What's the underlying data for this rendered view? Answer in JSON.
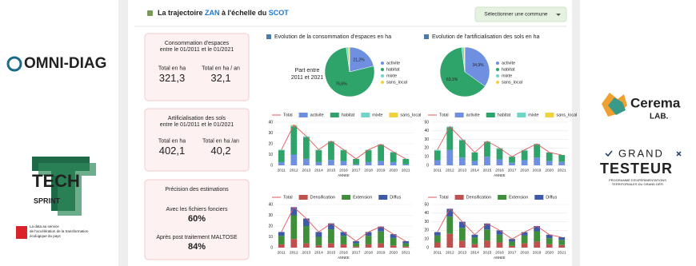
{
  "logos": {
    "omni": "OMNI-DIAG",
    "tech": "TECH",
    "sprint": "SPRINT",
    "tech_caption": [
      "La data au service",
      "de l'accélération de la transformation",
      "écologique du pays"
    ],
    "cerema": "Cerema",
    "cerema_lab": "LAB.",
    "grand": "GRAND",
    "testeur": "TESTEUR",
    "testeur_caption": [
      "PROGRAMME D'EXPÉRIMENTATIONS",
      "TERRITORIALES DU GRAND DÉFI"
    ]
  },
  "header": {
    "title": [
      "La trajectoire ",
      "ZAN",
      " à l'échelle du ",
      "SCOT"
    ],
    "dropdown": "Sélectionner une commune"
  },
  "kpis": [
    {
      "title": [
        "Consommation d'espaces",
        "entre le 01/2011 et le 01/2021"
      ],
      "items": [
        {
          "label": "Total en ha",
          "value": "321,3"
        },
        {
          "label": "Total en ha / an",
          "value": "32,1"
        }
      ]
    },
    {
      "title": [
        "Artificialisation des sols",
        "entre le 01/2011 et le 01/2021"
      ],
      "items": [
        {
          "label": "Total en ha",
          "value": "402,1"
        },
        {
          "label": "Total en ha /an",
          "value": "40,2"
        }
      ]
    },
    {
      "title": [
        "Précision des estimations"
      ],
      "items": [
        {
          "label": "Avec les fichiers fonciers",
          "value": "60%",
          "color": "#f0a020"
        },
        {
          "label": "Après post traitement MALTOSE",
          "value": "84%",
          "color": "#3f9a3a"
        }
      ]
    }
  ],
  "charts": [
    {
      "type": "pie",
      "title": "Evolution de la consommation d'espaces en ha",
      "center_label": [
        "Part entre",
        "2011 et 2021"
      ],
      "categories": [
        "activite",
        "habitat",
        "mixte",
        "sans_local"
      ],
      "colors": [
        "#6f8fe0",
        "#2ea36a",
        "#6fd5c9",
        "#f0d23c"
      ],
      "values": [
        21.2,
        76.6,
        1.5,
        0.7
      ],
      "value_labels": [
        "21,2%",
        "76,6%",
        null,
        null
      ]
    },
    {
      "type": "pie",
      "title": "Evolution de l'artificialisation des sols en ha",
      "categories": [
        "activite",
        "habitat",
        "mixte",
        "sans_local"
      ],
      "colors": [
        "#6f8fe0",
        "#2ea36a",
        "#6fd5c9",
        "#f0d23c"
      ],
      "values": [
        34.9,
        63.1,
        1.5,
        0.5
      ],
      "value_labels": [
        "34,9%",
        "63,1%",
        null,
        null
      ]
    },
    {
      "type": "bar",
      "stacked": true,
      "x_label": "ANNEE",
      "categories": [
        "2011",
        "2012",
        "2013",
        "2014",
        "2015",
        "2016",
        "2017",
        "2018",
        "2019",
        "2020",
        "2021"
      ],
      "ylim": [
        0,
        40
      ],
      "yticks": [
        0,
        10,
        20,
        30,
        40
      ],
      "series": [
        {
          "name": "Total",
          "mark": "line",
          "color": "#e05a5a",
          "values": [
            14.5,
            37.5,
            27,
            14.5,
            22.5,
            14.5,
            6,
            14.5,
            19.5,
            12.5,
            6
          ]
        },
        {
          "name": "activite",
          "color": "#6f8fe0",
          "values": [
            3,
            10,
            6,
            3,
            5,
            4,
            1,
            3,
            4,
            3,
            1
          ]
        },
        {
          "name": "habitat",
          "color": "#2ea36a",
          "values": [
            11,
            26,
            20,
            11,
            17,
            10,
            5,
            11,
            15,
            9,
            5
          ]
        },
        {
          "name": "mixte",
          "color": "#6fd5c9",
          "values": [
            0.5,
            1,
            1,
            0.5,
            0.5,
            0.5,
            0,
            0.5,
            0.5,
            0.5,
            0
          ]
        },
        {
          "name": "sans_local",
          "color": "#f0d23c",
          "values": [
            0,
            0.5,
            0,
            0,
            0,
            0,
            0,
            0,
            0,
            0,
            0
          ]
        }
      ]
    },
    {
      "type": "bar",
      "stacked": true,
      "x_label": "ANNEE",
      "categories": [
        "2011",
        "2012",
        "2013",
        "2014",
        "2015",
        "2016",
        "2017",
        "2018",
        "2019",
        "2020",
        "2021"
      ],
      "ylim": [
        0,
        50
      ],
      "yticks": [
        0,
        10,
        20,
        30,
        40,
        50
      ],
      "series": [
        {
          "name": "Total",
          "mark": "line",
          "color": "#e05a5a",
          "values": [
            18,
            45,
            30,
            15,
            28,
            20,
            10,
            18,
            25,
            15,
            12
          ]
        },
        {
          "name": "activite",
          "color": "#6f8fe0",
          "values": [
            6,
            18,
            9,
            5,
            10,
            7,
            3,
            6,
            9,
            5,
            4
          ]
        },
        {
          "name": "habitat",
          "color": "#2ea36a",
          "values": [
            11,
            26,
            20,
            10,
            17,
            12,
            7,
            11,
            15,
            10,
            8
          ]
        },
        {
          "name": "mixte",
          "color": "#6fd5c9",
          "values": [
            1,
            1,
            1,
            0,
            1,
            1,
            0,
            1,
            1,
            0,
            0
          ]
        },
        {
          "name": "sans_local",
          "color": "#f0d23c",
          "values": [
            0,
            0,
            0,
            0,
            0,
            0,
            0,
            0,
            0,
            0,
            0
          ]
        }
      ]
    },
    {
      "type": "bar",
      "stacked": true,
      "x_label": "ANNEE",
      "categories": [
        "2011",
        "2012",
        "2013",
        "2014",
        "2015",
        "2016",
        "2017",
        "2018",
        "2019",
        "2020",
        "2021"
      ],
      "ylim": [
        0,
        40
      ],
      "yticks": [
        0,
        10,
        20,
        30,
        40
      ],
      "series": [
        {
          "name": "Total",
          "mark": "line",
          "color": "#e05a5a",
          "values": [
            14.5,
            37.5,
            27,
            14.5,
            22.5,
            14.5,
            6,
            14.5,
            19.5,
            12.5,
            6
          ]
        },
        {
          "name": "Densification",
          "color": "#c0504d",
          "values": [
            3,
            8,
            4,
            2,
            4,
            3,
            1,
            3,
            4,
            2,
            1
          ]
        },
        {
          "name": "Extension",
          "color": "#3f8f3a",
          "values": [
            8,
            22,
            16,
            8,
            13,
            8,
            3,
            8,
            11,
            7,
            3
          ]
        },
        {
          "name": "Diffus",
          "color": "#3d5aa8",
          "values": [
            3.5,
            7.5,
            7,
            4.5,
            5.5,
            3.5,
            2,
            3.5,
            4.5,
            3.5,
            2
          ]
        }
      ]
    },
    {
      "type": "bar",
      "stacked": true,
      "x_label": "ANNEE",
      "categories": [
        "2011",
        "2012",
        "2013",
        "2014",
        "2015",
        "2016",
        "2017",
        "2018",
        "2019",
        "2020",
        "2021"
      ],
      "ylim": [
        0,
        50
      ],
      "yticks": [
        0,
        10,
        20,
        30,
        40,
        50
      ],
      "series": [
        {
          "name": "Total",
          "mark": "line",
          "color": "#e05a5a",
          "values": [
            18,
            45,
            30,
            15,
            28,
            20,
            10,
            18,
            25,
            15,
            12
          ]
        },
        {
          "name": "Densification",
          "color": "#c0504d",
          "values": [
            6,
            16,
            8,
            4,
            8,
            6,
            2,
            5,
            7,
            4,
            3
          ]
        },
        {
          "name": "Extension",
          "color": "#3f8f3a",
          "values": [
            8,
            20,
            15,
            8,
            13,
            9,
            5,
            9,
            12,
            7,
            6
          ]
        },
        {
          "name": "Diffus",
          "color": "#3d5aa8",
          "values": [
            4,
            9,
            7,
            3,
            7,
            5,
            3,
            4,
            6,
            4,
            3
          ]
        }
      ]
    }
  ]
}
